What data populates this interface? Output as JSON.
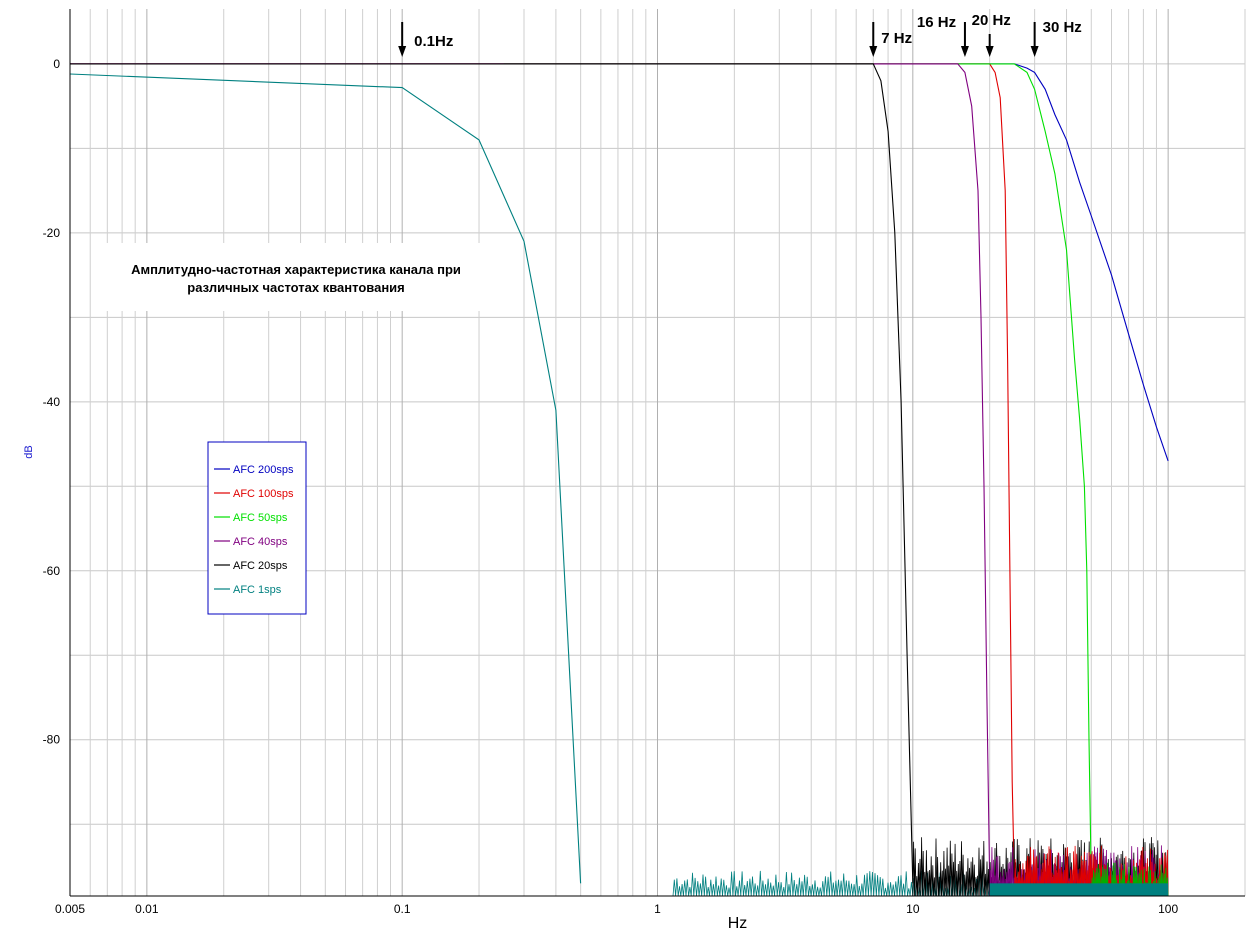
{
  "chart_data": {
    "type": "line",
    "title_lines": [
      "Амплитудно-частотная характеристика канала при",
      "различных частотах квантования"
    ],
    "xlabel": "Hz",
    "ylabel": "dB",
    "x_scale": "log",
    "xlim": [
      0.005,
      200
    ],
    "ylim": [
      -98.5,
      6.5
    ],
    "x_ticks": [
      {
        "value": 0.005,
        "label": "0.005"
      },
      {
        "value": 0.01,
        "label": "0.01"
      },
      {
        "value": 0.1,
        "label": "0.1"
      },
      {
        "value": 1,
        "label": "1"
      },
      {
        "value": 10,
        "label": "10"
      },
      {
        "value": 100,
        "label": "100"
      }
    ],
    "y_ticks": [
      {
        "value": 0,
        "label": "0"
      },
      {
        "value": -20,
        "label": "-20"
      },
      {
        "value": -40,
        "label": "-40"
      },
      {
        "value": -60,
        "label": "-60"
      },
      {
        "value": -80,
        "label": "-80"
      }
    ],
    "grid": true,
    "legend_position": "left-middle",
    "series": [
      {
        "name": "AFC 200sps",
        "color": "#0000c0",
        "x": [
          0.005,
          1,
          10,
          25,
          28,
          30,
          33,
          36,
          40,
          45,
          50,
          60,
          70,
          80,
          90,
          100
        ],
        "y": [
          0,
          0,
          0,
          0,
          -0.5,
          -1,
          -3,
          -6,
          -9,
          -14,
          -18,
          -25,
          -32,
          -38,
          -43,
          -47
        ]
      },
      {
        "name": "AFC 100sps",
        "color": "#e00000",
        "x": [
          0.005,
          1,
          10,
          20,
          21,
          22,
          23,
          23.5,
          24,
          24.5,
          25
        ],
        "y": [
          0,
          0,
          0,
          0,
          -1,
          -4,
          -15,
          -35,
          -60,
          -85,
          -97
        ]
      },
      {
        "name": "AFC 50sps",
        "color": "#00e000",
        "x": [
          0.25,
          1,
          10,
          25,
          28,
          30,
          33,
          36,
          40,
          43,
          45,
          47,
          48,
          49,
          50
        ],
        "y": [
          0,
          0,
          0,
          0,
          -1,
          -3,
          -8,
          -13,
          -22,
          -35,
          -42,
          -50,
          -60,
          -80,
          -97
        ]
      },
      {
        "name": "AFC 40sps",
        "color": "#800080",
        "x": [
          0.005,
          1,
          10,
          15,
          16,
          17,
          18,
          18.5,
          19,
          19.5,
          20
        ],
        "y": [
          0,
          0,
          0,
          0,
          -1,
          -5,
          -15,
          -30,
          -50,
          -75,
          -97
        ]
      },
      {
        "name": "AFC 20sps",
        "color": "#000000",
        "x": [
          0.005,
          1,
          7,
          7.5,
          8,
          8.5,
          9,
          9.5,
          10
        ],
        "y": [
          0,
          0,
          0,
          -2,
          -8,
          -20,
          -40,
          -70,
          -97
        ]
      },
      {
        "name": "AFC 1sps",
        "color": "#008080",
        "x": [
          0.005,
          0.1,
          0.2,
          0.3,
          0.4,
          0.5
        ],
        "y": [
          -1.2,
          -2.8,
          -9,
          -21,
          -41,
          -97
        ]
      }
    ],
    "annotations": [
      {
        "label": "0.1Hz",
        "x": 0.1
      },
      {
        "label": "7 Hz",
        "x": 7
      },
      {
        "label": "16 Hz",
        "x": 16
      },
      {
        "label": "20 Hz",
        "x": 20
      },
      {
        "label": "30 Hz",
        "x": 30
      }
    ]
  }
}
